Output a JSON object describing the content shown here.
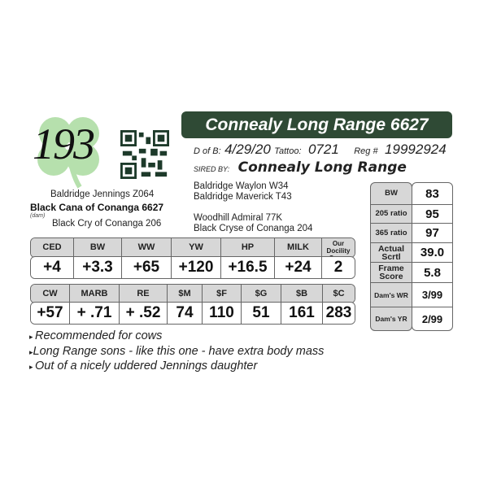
{
  "lot_number": "193",
  "logo": "shamrock-logo",
  "qr": "qr-code",
  "title": "Connealy Long Range 6627",
  "dob_label": "D of B:",
  "dob": "4/29/20",
  "tattoo_label": "Tattoo:",
  "tattoo": "0721",
  "reg_label": "Reg #",
  "reg": "19992924",
  "sired_label": "SIRED BY:",
  "sire": "Connealy Long Range",
  "sire_pedigree": [
    "Baldridge Waylon W34",
    "Baldridge Maverick T43"
  ],
  "dam_sire_pedigree": [
    "Woodhill Admiral 77K",
    "Black Cryse of Conanga 204"
  ],
  "dam_side": {
    "top": "Baldridge Jennings Z064",
    "dam": "Black Cana of Conanga 6627",
    "dam_label": "(dam)",
    "bottom": "Black Cry of Conanga 206"
  },
  "epd1": {
    "headers": [
      "CED",
      "BW",
      "WW",
      "YW",
      "HP",
      "MILK",
      "Our Docility Score"
    ],
    "values": [
      "+4",
      "+3.3",
      "+65",
      "+120",
      "+16.5",
      "+24",
      "2"
    ]
  },
  "epd2": {
    "headers": [
      "CW",
      "MARB",
      "RE",
      "$M",
      "$F",
      "$G",
      "$B",
      "$C"
    ],
    "values": [
      "+57",
      "+ .71",
      "+ .52",
      "74",
      "110",
      "51",
      "161",
      "283"
    ]
  },
  "side": {
    "labels": [
      "BW",
      "205 ratio",
      "365 ratio",
      "Actual Scrtl",
      "Frame Score",
      "Dam's WR",
      "Dam's YR"
    ],
    "values": [
      "83",
      "95",
      "97",
      "39.0",
      "5.8",
      "3/99",
      "2/99"
    ]
  },
  "notes": [
    "Recommended for cows",
    "Long Range sons - like this one - have extra body mass",
    "Out of a nicely uddered Jennings daughter"
  ],
  "colors": {
    "title_bg": "#2f4a35",
    "shamrock": "#a8d8a0"
  }
}
